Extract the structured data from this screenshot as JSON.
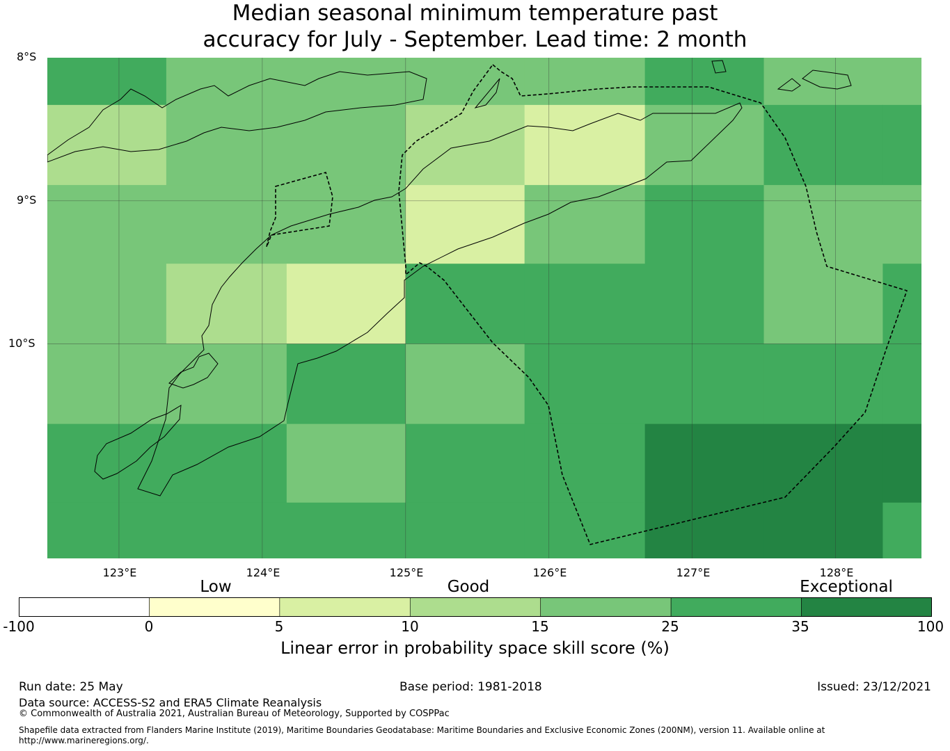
{
  "title": {
    "line1": "Median seasonal minimum temperature past",
    "line2": "accuracy for July - September. Lead time: 2 month"
  },
  "map": {
    "lat_labels": [
      "8°S",
      "9°S",
      "10°S"
    ],
    "lon_labels": [
      "123°E",
      "124°E",
      "125°E",
      "126°E",
      "127°E",
      "128°E"
    ],
    "lon_range": [
      122.5,
      128.6
    ],
    "lat_range": [
      -8.0,
      -11.5
    ],
    "grid_cells": {
      "col_edges_lon": [
        122.5,
        123.33,
        124.17,
        125.0,
        125.83,
        126.67,
        127.5,
        128.33,
        128.6
      ],
      "row_edges_lat": [
        -8.0,
        -8.33,
        -8.89,
        -9.44,
        -10.0,
        -10.56,
        -11.11,
        -11.5
      ],
      "values": [
        [
          30,
          20,
          20,
          20,
          20,
          30,
          20,
          20
        ],
        [
          12,
          20,
          20,
          12,
          7,
          20,
          30,
          30
        ],
        [
          20,
          20,
          20,
          7,
          20,
          30,
          20,
          20
        ],
        [
          20,
          12,
          7,
          30,
          30,
          30,
          20,
          30
        ],
        [
          20,
          20,
          30,
          20,
          30,
          30,
          30,
          30
        ],
        [
          30,
          30,
          20,
          30,
          30,
          40,
          40,
          40
        ],
        [
          30,
          30,
          30,
          30,
          30,
          40,
          40,
          30
        ]
      ]
    }
  },
  "colorbar": {
    "category_labels": [
      "Low",
      "Good",
      "Exceptional"
    ],
    "ticks": [
      "-100",
      "0",
      "5",
      "10",
      "15",
      "25",
      "35",
      "100"
    ],
    "colors": [
      "#ffffff",
      "#ffffcc",
      "#d9f0a3",
      "#addd8e",
      "#78c679",
      "#41ab5d",
      "#238443"
    ],
    "title": "Linear error in probability space skill score (%)"
  },
  "footer": {
    "run_date": "Run date: 25 May",
    "base_period": "Base period: 1981-2018",
    "issued": "Issued: 23/12/2021",
    "data_source": "Data source: ACCESS-S2 and ERA5 Climate Reanalysis",
    "copyright": "© Commonwealth of Australia 2021, Australian Bureau of Meteorology, Supported by COSPPac",
    "shapefile_line1": "Shapefile data extracted from Flanders Marine Institute (2019), Maritime Boundaries Geodatabase: Maritime Boundaries and Exclusive Economic Zones (200NM), version 11. Available online at",
    "shapefile_line2": "http://www.marineregions.org/."
  }
}
